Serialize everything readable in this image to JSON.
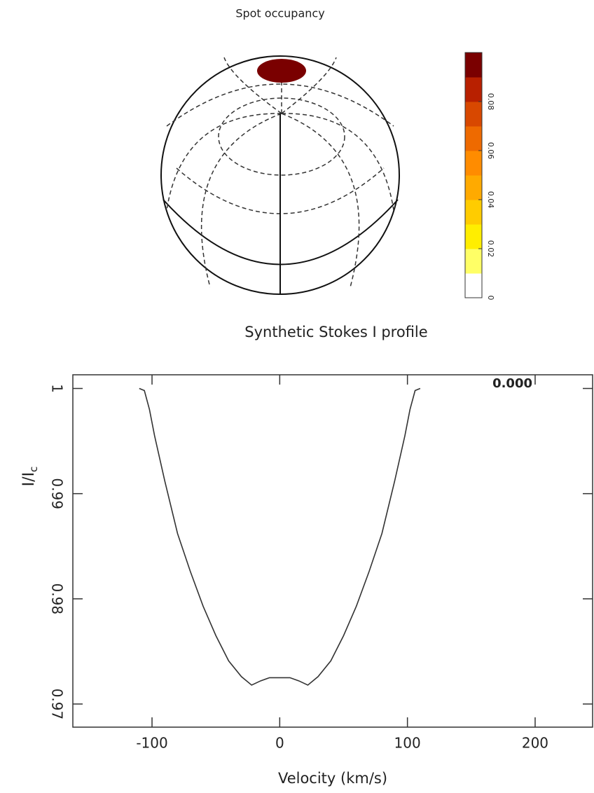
{
  "chart_data": [
    {
      "type": "sphere",
      "title": "Spot occupancy",
      "colorbar": {
        "lim": [
          0,
          0.1
        ],
        "ticks": [
          0,
          0.02,
          0.04,
          0.06,
          0.08
        ],
        "colors": [
          "#ffffff",
          "#ffff66",
          "#ffee00",
          "#ffcc00",
          "#ffaa00",
          "#ff8c00",
          "#ee6a00",
          "#d84800",
          "#b82000",
          "#7a0000"
        ]
      },
      "spot_value": 0.1
    },
    {
      "type": "line",
      "title": "Synthetic Stokes I profile",
      "x_label": "Velocity (km/s)",
      "y_label": {
        "text": "I/I",
        "sub": "c"
      },
      "annotation": "0.000",
      "color": "#333333",
      "xlim": [
        -162,
        245
      ],
      "ylim": [
        0.9678,
        1.0013
      ],
      "xticks": [
        -100,
        0,
        100,
        200
      ],
      "yticks": [
        0.97,
        0.98,
        0.99,
        1
      ],
      "x": [
        -110,
        -106,
        -102,
        -98,
        -90,
        -80,
        -70,
        -60,
        -50,
        -40,
        -30,
        -22,
        -15,
        -8,
        0,
        8,
        15,
        22,
        30,
        40,
        50,
        60,
        70,
        80,
        90,
        98,
        102,
        106,
        110
      ],
      "values": [
        1.0,
        0.9998,
        0.998,
        0.9955,
        0.9912,
        0.9862,
        0.9826,
        0.9793,
        0.9765,
        0.9741,
        0.9726,
        0.9718,
        0.9722,
        0.9725,
        0.9725,
        0.9725,
        0.9722,
        0.9718,
        0.9726,
        0.9741,
        0.9765,
        0.9793,
        0.9826,
        0.9862,
        0.9912,
        0.9955,
        0.998,
        0.9998,
        1.0
      ]
    }
  ]
}
